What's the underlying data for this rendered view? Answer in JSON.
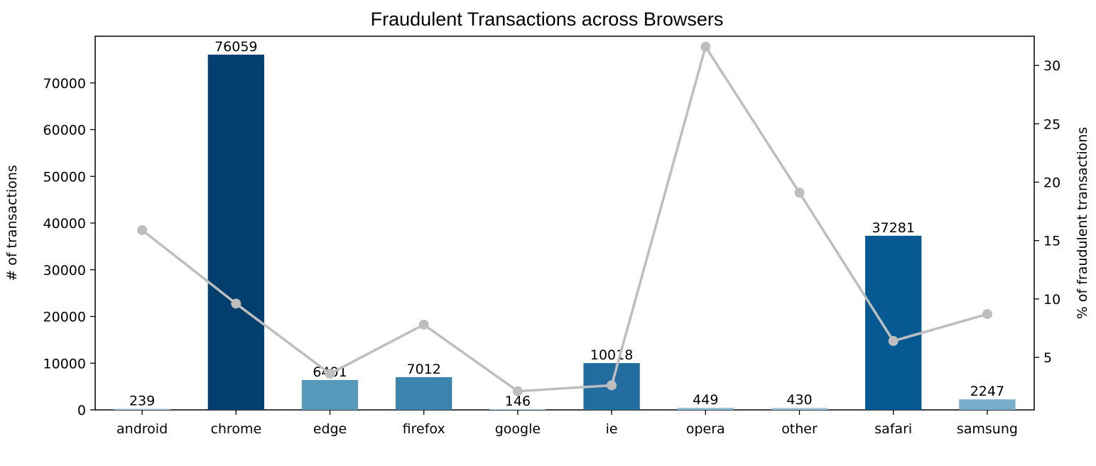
{
  "chart_data": {
    "type": "bar",
    "title": "Fraudulent Transactions across Browsers",
    "categories": [
      "android",
      "chrome",
      "edge",
      "firefox",
      "google",
      "ie",
      "opera",
      "other",
      "safari",
      "samsung"
    ],
    "series": [
      {
        "values": [
          239,
          76059,
          6401,
          7012,
          146,
          10018,
          449,
          430,
          37281,
          2247
        ],
        "colors": [
          "#a6cee3",
          "#023e6e",
          "#5699bb",
          "#3a84ad",
          "#aad0e4",
          "#226d9f",
          "#94c2db",
          "#9ec8df",
          "#065a91",
          "#78aecb"
        ],
        "axis": "left"
      },
      {
        "type": "line",
        "values": [
          15.9,
          9.6,
          3.6,
          7.8,
          2.1,
          2.6,
          31.6,
          19.1,
          6.4,
          8.7
        ],
        "color": "#bebebe",
        "axis": "right"
      }
    ],
    "xlabel": "",
    "ylabel": "# of transactions",
    "y2label": "% of fraudulent transactions",
    "ylim": [
      0,
      80000
    ],
    "y2lim": [
      0.5,
      32.5
    ],
    "yticks": [
      0,
      10000,
      20000,
      30000,
      40000,
      50000,
      60000,
      70000
    ],
    "y2ticks": [
      5,
      10,
      15,
      20,
      25,
      30
    ],
    "grid": false,
    "legend": "none"
  }
}
